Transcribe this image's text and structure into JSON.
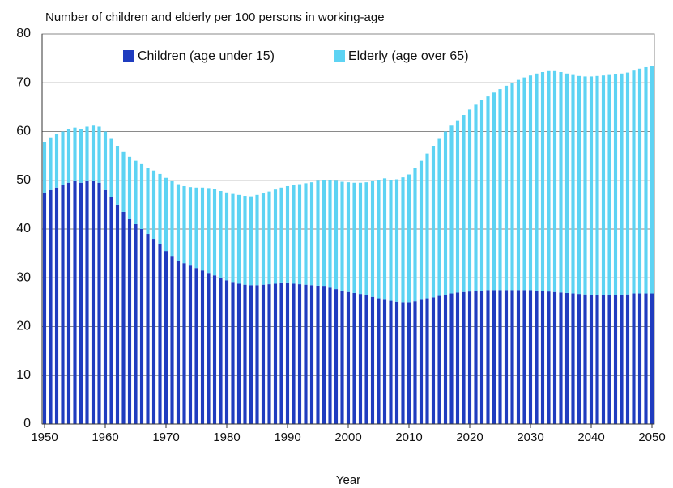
{
  "chart_data": {
    "type": "bar",
    "stacked": true,
    "title": "Number of children and elderly per 100 persons in working-age",
    "x_label": "Year",
    "x": [
      1950,
      1951,
      1952,
      1953,
      1954,
      1955,
      1956,
      1957,
      1958,
      1959,
      1960,
      1961,
      1962,
      1963,
      1964,
      1965,
      1966,
      1967,
      1968,
      1969,
      1970,
      1971,
      1972,
      1973,
      1974,
      1975,
      1976,
      1977,
      1978,
      1979,
      1980,
      1981,
      1982,
      1983,
      1984,
      1985,
      1986,
      1987,
      1988,
      1989,
      1990,
      1991,
      1992,
      1993,
      1994,
      1995,
      1996,
      1997,
      1998,
      1999,
      2000,
      2001,
      2002,
      2003,
      2004,
      2005,
      2006,
      2007,
      2008,
      2009,
      2010,
      2011,
      2012,
      2013,
      2014,
      2015,
      2016,
      2017,
      2018,
      2019,
      2020,
      2021,
      2022,
      2023,
      2024,
      2025,
      2026,
      2027,
      2028,
      2029,
      2030,
      2031,
      2032,
      2033,
      2034,
      2035,
      2036,
      2037,
      2038,
      2039,
      2040,
      2041,
      2042,
      2043,
      2044,
      2045,
      2046,
      2047,
      2048,
      2049,
      2050
    ],
    "series": [
      {
        "name": "Children (age under 15)",
        "color": "#1f3cbf",
        "values": [
          47.5,
          48,
          48.5,
          49,
          49.5,
          49.8,
          49.5,
          49.8,
          49.8,
          49.5,
          48,
          46.5,
          45,
          43.5,
          42,
          41,
          40,
          39,
          38,
          37,
          35.5,
          34.5,
          33.5,
          33,
          32.5,
          32,
          31.5,
          31,
          30.5,
          30,
          29.5,
          29,
          28.8,
          28.6,
          28.5,
          28.5,
          28.6,
          28.7,
          28.8,
          28.9,
          28.9,
          28.8,
          28.7,
          28.6,
          28.5,
          28.4,
          28.2,
          28,
          27.7,
          27.4,
          27.1,
          26.9,
          26.7,
          26.4,
          26.1,
          25.8,
          25.5,
          25.3,
          25.1,
          25,
          25,
          25.2,
          25.5,
          25.8,
          26,
          26.3,
          26.5,
          26.8,
          27,
          27.1,
          27.2,
          27.3,
          27.4,
          27.5,
          27.5,
          27.5,
          27.5,
          27.5,
          27.5,
          27.5,
          27.5,
          27.4,
          27.3,
          27.2,
          27.1,
          27,
          26.9,
          26.8,
          26.7,
          26.6,
          26.5,
          26.5,
          26.5,
          26.5,
          26.5,
          26.5,
          26.6,
          26.8,
          26.8,
          26.8,
          26.8
        ]
      },
      {
        "name": "Elderly (age over 65)",
        "color": "#5dd3f3",
        "values": [
          10.3,
          10.8,
          11,
          11,
          11,
          11,
          11,
          11.2,
          11.4,
          11.5,
          12,
          12,
          12,
          12.3,
          12.8,
          13,
          13.3,
          13.6,
          14,
          14.3,
          15,
          15.3,
          15.7,
          15.8,
          16.1,
          16.5,
          17,
          17.4,
          17.7,
          17.8,
          18,
          18.2,
          18.2,
          18.2,
          18.2,
          18.5,
          18.7,
          19,
          19.3,
          19.6,
          19.9,
          20.2,
          20.5,
          20.8,
          21.1,
          21.5,
          21.8,
          22,
          22.2,
          22.3,
          22.5,
          22.6,
          22.8,
          23.2,
          23.7,
          24.2,
          24.9,
          24.8,
          25.1,
          25.6,
          26.2,
          27.3,
          28.5,
          29.7,
          31,
          32.2,
          33.5,
          34.4,
          35.3,
          36.3,
          37.3,
          38.2,
          39,
          39.7,
          40.5,
          41.2,
          41.9,
          42.5,
          43.1,
          43.6,
          44,
          44.5,
          44.9,
          45.2,
          45.3,
          45.2,
          45,
          44.8,
          44.7,
          44.7,
          44.8,
          44.9,
          45,
          45.1,
          45.2,
          45.4,
          45.5,
          45.7,
          46.1,
          46.4,
          46.7
        ]
      }
    ],
    "xlim": [
      1949.6,
      2050.4
    ],
    "xticks": [
      1950,
      1960,
      1970,
      1980,
      1990,
      2000,
      2010,
      2020,
      2030,
      2040,
      2050
    ],
    "ylim": [
      0,
      80
    ],
    "yticks": [
      0,
      10,
      20,
      30,
      40,
      50,
      60,
      70,
      80
    ],
    "grid": true,
    "legend": "top"
  }
}
